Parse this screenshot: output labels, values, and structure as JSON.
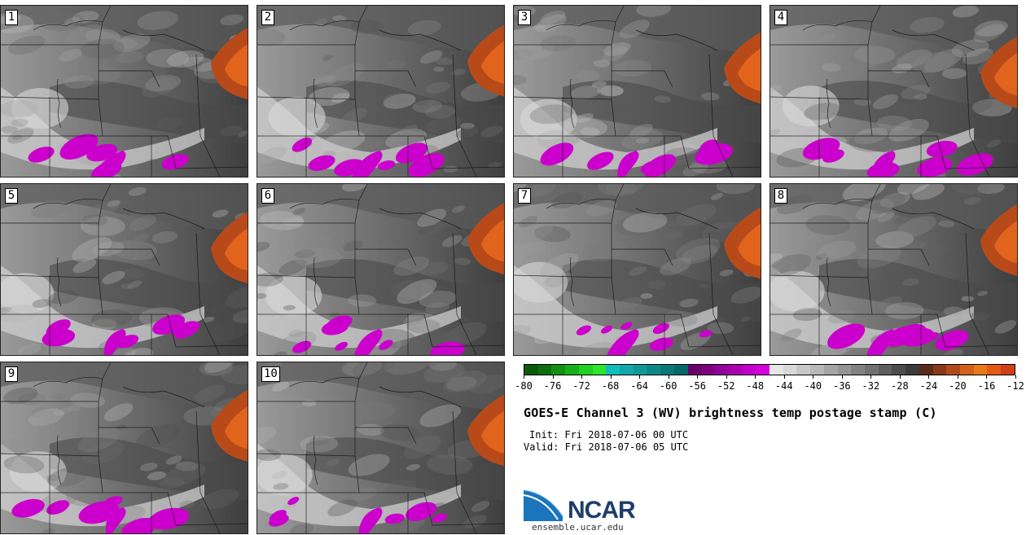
{
  "panels": [
    {
      "label": "1",
      "seed": 11
    },
    {
      "label": "2",
      "seed": 23
    },
    {
      "label": "3",
      "seed": 37
    },
    {
      "label": "4",
      "seed": 41
    },
    {
      "label": "5",
      "seed": 53
    },
    {
      "label": "6",
      "seed": 67
    },
    {
      "label": "7",
      "seed": 71
    },
    {
      "label": "8",
      "seed": 83
    },
    {
      "label": "9",
      "seed": 97
    },
    {
      "label": "10",
      "seed": 101
    }
  ],
  "colorbar": {
    "tick_labels": [
      "-80",
      "-76",
      "-72",
      "-68",
      "-64",
      "-60",
      "-56",
      "-52",
      "-48",
      "-44",
      "-40",
      "-36",
      "-32",
      "-28",
      "-24",
      "-20",
      "-16",
      "-12"
    ],
    "colors": [
      "#0a5a0a",
      "#0e6e0e",
      "#129012",
      "#18b018",
      "#20d020",
      "#2ee42e",
      "#12bcbc",
      "#10a8a8",
      "#0e9898",
      "#0c8888",
      "#0a7878",
      "#086868",
      "#6a006a",
      "#7e007e",
      "#94009a",
      "#aa00b0",
      "#c000c8",
      "#d400dc",
      "#e6e6e6",
      "#d8d8d8",
      "#c8c8c8",
      "#b8b8b8",
      "#a6a6a6",
      "#949494",
      "#828282",
      "#707070",
      "#5e5e5e",
      "#4c4c4c",
      "#3c3c3c",
      "#5a2a1a",
      "#8a3a1a",
      "#b04a1a",
      "#d4601a",
      "#e87a1a",
      "#e45a14",
      "#d0401a"
    ]
  },
  "title": "GOES-E Channel 3 (WV) brightness temp postage stamp (C)",
  "init_text": "Init: Fri 2018-07-06 00 UTC",
  "valid_text": "Valid: Fri 2018-07-06 05 UTC",
  "logo": {
    "word": "NCAR",
    "url": "ensemble.ucar.edu"
  },
  "colors": {
    "hot_core": "#d45a1a",
    "cold_core": "#cc00cc",
    "background": "#7a7a7a"
  }
}
